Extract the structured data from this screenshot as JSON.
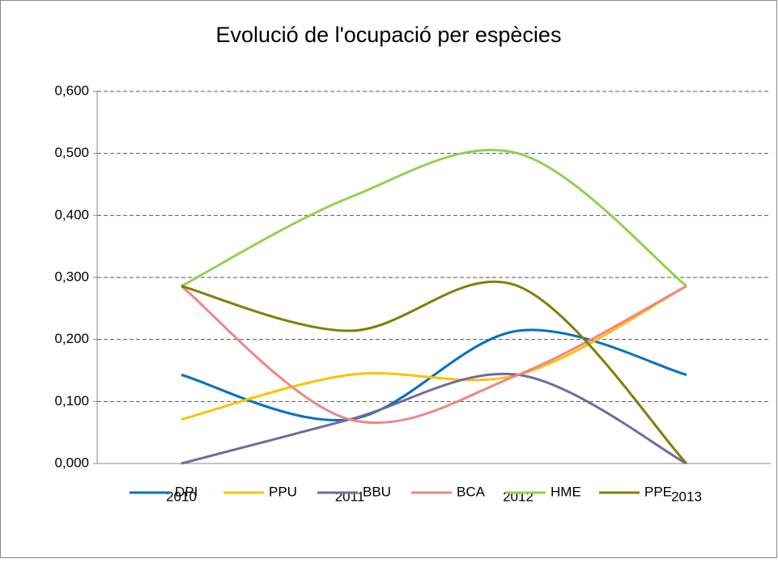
{
  "chart_data": {
    "type": "line",
    "title": "Evolució de l'ocupació per espècies",
    "categories": [
      "2010",
      "2011",
      "2012",
      "2013"
    ],
    "series": [
      {
        "name": "DPI",
        "color": "#0070c0",
        "values": [
          0.143,
          0.071,
          0.214,
          0.143
        ]
      },
      {
        "name": "PPU",
        "color": "#ffc000",
        "values": [
          0.071,
          0.143,
          0.143,
          0.286
        ]
      },
      {
        "name": "BBU",
        "color": "#6e6c9e",
        "values": [
          0,
          0.071,
          0.143,
          0
        ]
      },
      {
        "name": "BCA",
        "color": "#f28484",
        "values": [
          0.286,
          0.071,
          0.143,
          0.286
        ]
      },
      {
        "name": "HME",
        "color": "#92d050",
        "values": [
          0.286,
          0.429,
          0.5,
          0.286
        ]
      },
      {
        "name": "PPE",
        "color": "#7f7f00",
        "values": [
          0.286,
          0.214,
          0.286,
          0
        ]
      }
    ],
    "ylim": [
      0,
      0.6
    ],
    "yticks": [
      {
        "value": 0,
        "label": "0,000"
      },
      {
        "value": 0.1,
        "label": "0,100"
      },
      {
        "value": 0.2,
        "label": "0,200"
      },
      {
        "value": 0.3,
        "label": "0,300"
      },
      {
        "value": 0.4,
        "label": "0,400"
      },
      {
        "value": 0.5,
        "label": "0,500"
      },
      {
        "value": 0.6,
        "label": "0,600"
      }
    ],
    "grid": true,
    "smooth": true,
    "legend": "bottom"
  }
}
